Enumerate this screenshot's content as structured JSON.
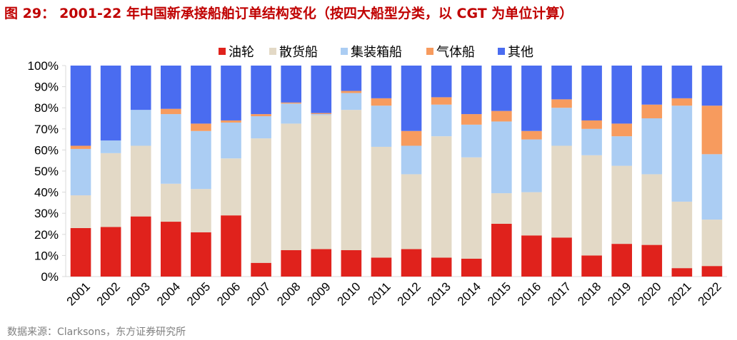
{
  "figure": {
    "label": "图 29：",
    "title_text": "2001-22 年中国新承接船舶订单结构变化（按四大船型分类，以 CGT 为单位计算）",
    "source": "数据来源：Clarksons，东方证券研究所"
  },
  "chart_data": {
    "type": "bar",
    "stacked": true,
    "title": "2001-22 年中国新承接船舶订单结构变化（按四大船型分类，以 CGT 为单位计算）",
    "xlabel": "",
    "ylabel": "",
    "ylim": [
      0,
      100
    ],
    "y_ticks": [
      "0%",
      "10%",
      "20%",
      "30%",
      "40%",
      "50%",
      "60%",
      "70%",
      "80%",
      "90%",
      "100%"
    ],
    "legend_position": "top",
    "categories": [
      "2001",
      "2002",
      "2003",
      "2004",
      "2005",
      "2006",
      "2007",
      "2008",
      "2009",
      "2010",
      "2011",
      "2012",
      "2013",
      "2014",
      "2015",
      "2016",
      "2017",
      "2018",
      "2019",
      "2020",
      "2021",
      "2022"
    ],
    "series": [
      {
        "name": "油轮",
        "color": "#e0221c",
        "values": [
          23,
          23.5,
          28.5,
          26,
          21,
          29,
          6.5,
          12.5,
          13,
          12.5,
          9,
          13,
          9,
          8.5,
          25,
          19.5,
          18.5,
          10,
          15.5,
          15,
          4,
          5
        ]
      },
      {
        "name": "散货船",
        "color": "#e3d9c6",
        "values": [
          15.5,
          35,
          33.5,
          18,
          20.5,
          27,
          59,
          60,
          63.5,
          66.5,
          52.5,
          35.5,
          57.5,
          48,
          14.5,
          20.5,
          43.5,
          47.5,
          37,
          33.5,
          31.5,
          22
        ]
      },
      {
        "name": "集装箱船",
        "color": "#abcdf3",
        "values": [
          22,
          6,
          17,
          33,
          27.5,
          17,
          10.5,
          9.5,
          0.5,
          8,
          19.5,
          13.5,
          15,
          15.5,
          34,
          25,
          18,
          12.5,
          14,
          26.5,
          45.5,
          31
        ]
      },
      {
        "name": "气体船",
        "color": "#f79b5e",
        "values": [
          1.5,
          0,
          0,
          2.5,
          3.5,
          1,
          1,
          0.5,
          0.5,
          1,
          3.5,
          7,
          3.5,
          5,
          5,
          4,
          4,
          4,
          6,
          6.5,
          3.5,
          23
        ]
      },
      {
        "name": "其他",
        "color": "#4a6cf0",
        "values": [
          38,
          35.5,
          21,
          20.5,
          27.5,
          26,
          23,
          17.5,
          22.5,
          12,
          15.5,
          31,
          15,
          23,
          21.5,
          31,
          16,
          26,
          27.5,
          18.5,
          15.5,
          19
        ]
      }
    ]
  }
}
